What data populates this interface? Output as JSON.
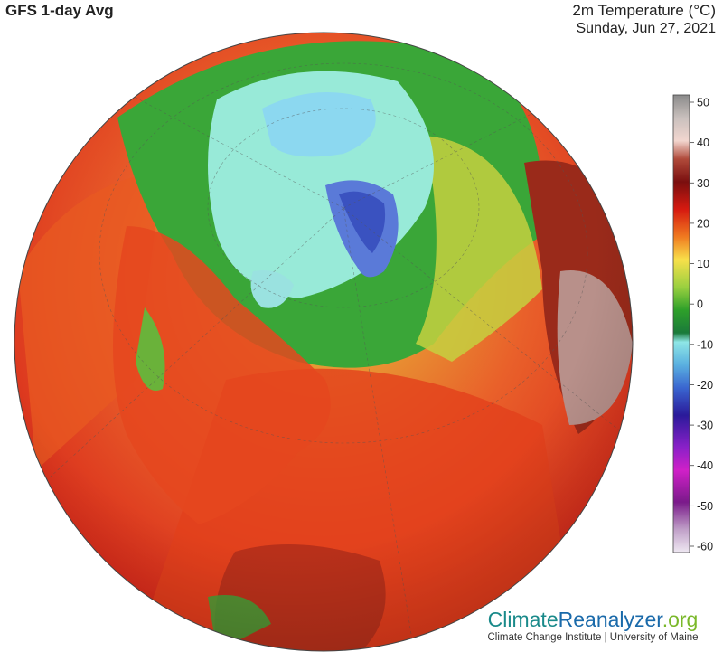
{
  "header": {
    "left_title": "GFS 1-day Avg",
    "right_title": "2m Temperature (°C)",
    "date": "Sunday, Jun 27, 2021"
  },
  "legend": {
    "ticks": [
      "50",
      "40",
      "30",
      "20",
      "10",
      "0",
      "-10",
      "-20",
      "-30",
      "-40",
      "-50",
      "-60"
    ],
    "colors": [
      "#8a8a8a",
      "#f2d6cf",
      "#7a0f0f",
      "#d61a10",
      "#f8e04a",
      "#2ea02a",
      "#8ee6e6",
      "#3a66d0",
      "#2a1a9a",
      "#d020c8",
      "#7a1a8a",
      "#efe8f2"
    ]
  },
  "brand": {
    "name_part1": "Climate",
    "name_part2": "Reanalyzer",
    "name_part3": ".org",
    "tagline": "Climate Change Institute | University of Maine",
    "color_climate": "#1a8a8a",
    "color_reanalyzer": "#1a6aaa",
    "color_org": "#7ab82a"
  }
}
